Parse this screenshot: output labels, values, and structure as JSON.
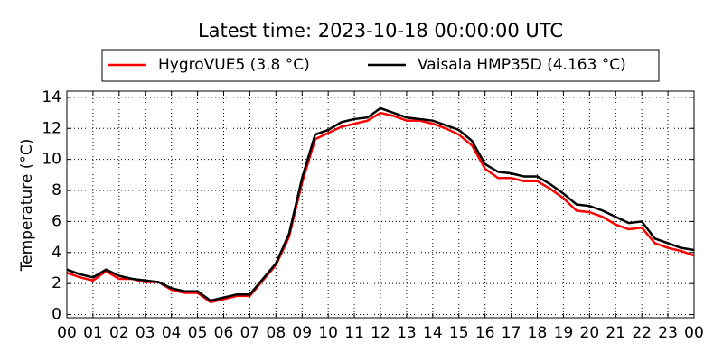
{
  "chart_data": {
    "type": "line",
    "title": "Latest time: 2023-10-18 00:00:00 UTC",
    "y_label": "Temperature (°C)",
    "x": [
      0,
      0.5,
      1,
      1.5,
      2,
      2.5,
      3,
      3.5,
      4,
      4.5,
      5,
      5.5,
      6,
      6.5,
      7,
      7.5,
      8,
      8.5,
      9,
      9.5,
      10,
      10.5,
      11,
      11.5,
      12,
      12.5,
      13,
      13.5,
      14,
      14.5,
      15,
      15.5,
      16,
      16.5,
      17,
      17.5,
      18,
      18.5,
      19,
      19.5,
      20,
      20.5,
      21,
      21.5,
      22,
      22.5,
      23,
      23.5,
      24
    ],
    "series": [
      {
        "name": "HygroVUE5 (3.8 °C)",
        "color": "#ff0000",
        "values": [
          2.7,
          2.4,
          2.2,
          2.8,
          2.3,
          2.3,
          2.1,
          2.1,
          1.6,
          1.4,
          1.4,
          0.8,
          1.0,
          1.2,
          1.2,
          2.2,
          3.2,
          5.0,
          8.5,
          11.3,
          11.7,
          12.1,
          12.3,
          12.5,
          13.0,
          12.8,
          12.5,
          12.5,
          12.3,
          12.0,
          11.6,
          10.9,
          9.4,
          8.8,
          8.8,
          8.6,
          8.6,
          8.1,
          7.5,
          6.7,
          6.6,
          6.3,
          5.8,
          5.5,
          5.6,
          4.6,
          4.3,
          4.1,
          3.8
        ]
      },
      {
        "name": "Vaisala HMP35D (4.163 °C)",
        "color": "#000000",
        "values": [
          2.9,
          2.6,
          2.4,
          2.9,
          2.5,
          2.3,
          2.2,
          2.1,
          1.7,
          1.5,
          1.5,
          0.9,
          1.1,
          1.3,
          1.3,
          2.3,
          3.3,
          5.2,
          8.8,
          11.6,
          11.9,
          12.4,
          12.6,
          12.7,
          13.3,
          13.0,
          12.7,
          12.6,
          12.5,
          12.2,
          11.9,
          11.2,
          9.7,
          9.2,
          9.1,
          8.9,
          8.9,
          8.4,
          7.8,
          7.1,
          7.0,
          6.7,
          6.3,
          5.9,
          6.0,
          4.9,
          4.6,
          4.3,
          4.163
        ]
      }
    ],
    "xlim": [
      0,
      24
    ],
    "xticks": [
      {
        "value": 0,
        "label": "00"
      },
      {
        "value": 1,
        "label": "01"
      },
      {
        "value": 2,
        "label": "02"
      },
      {
        "value": 3,
        "label": "03"
      },
      {
        "value": 4,
        "label": "04"
      },
      {
        "value": 5,
        "label": "05"
      },
      {
        "value": 6,
        "label": "06"
      },
      {
        "value": 7,
        "label": "07"
      },
      {
        "value": 8,
        "label": "08"
      },
      {
        "value": 9,
        "label": "09"
      },
      {
        "value": 10,
        "label": "10"
      },
      {
        "value": 11,
        "label": "11"
      },
      {
        "value": 12,
        "label": "12"
      },
      {
        "value": 13,
        "label": "13"
      },
      {
        "value": 14,
        "label": "14"
      },
      {
        "value": 15,
        "label": "15"
      },
      {
        "value": 16,
        "label": "16"
      },
      {
        "value": 17,
        "label": "17"
      },
      {
        "value": 18,
        "label": "18"
      },
      {
        "value": 19,
        "label": "19"
      },
      {
        "value": 20,
        "label": "20"
      },
      {
        "value": 21,
        "label": "21"
      },
      {
        "value": 22,
        "label": "22"
      },
      {
        "value": 23,
        "label": "23"
      },
      {
        "value": 24,
        "label": "00"
      }
    ],
    "ylim": [
      -0.2,
      14.4
    ],
    "yticks": [
      0,
      2,
      4,
      6,
      8,
      10,
      12,
      14
    ],
    "grid": true,
    "legend": "top"
  }
}
